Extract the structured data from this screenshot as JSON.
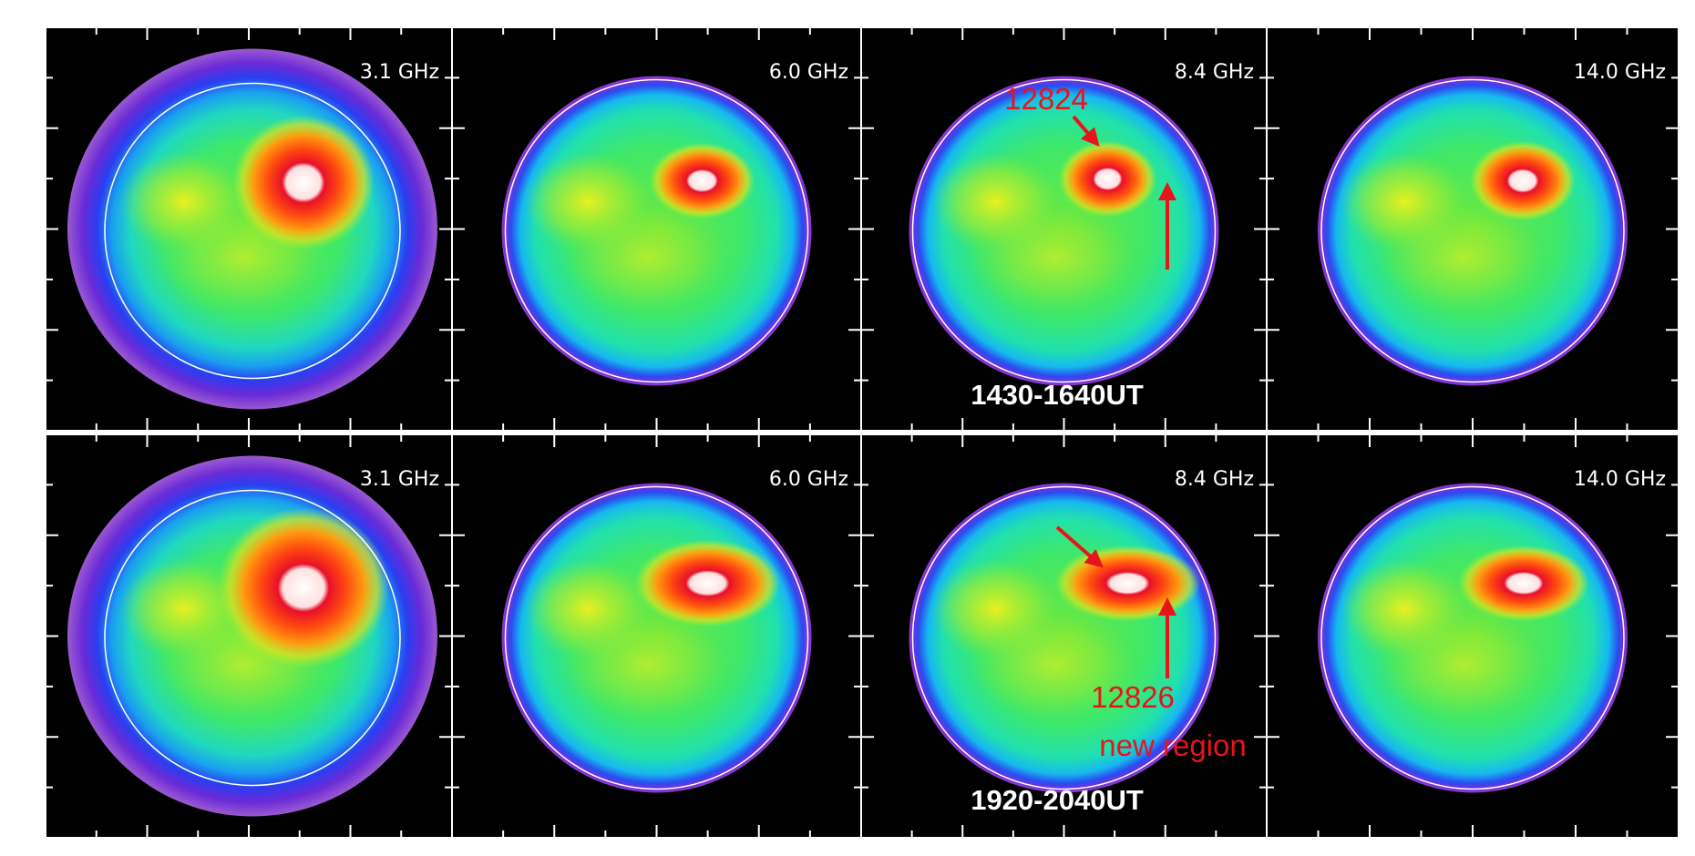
{
  "rows": [
    {
      "time": "1430-1640UT",
      "panels": [
        {
          "frequency": "3.1 GHz"
        },
        {
          "frequency": "6.0 GHz"
        },
        {
          "frequency": "8.4 GHz"
        },
        {
          "frequency": "14.0 GHz"
        }
      ],
      "annotations": [
        "12824"
      ]
    },
    {
      "time": "1920-2040UT",
      "panels": [
        {
          "frequency": "3.1 GHz"
        },
        {
          "frequency": "6.0 GHz"
        },
        {
          "frequency": "8.4 GHz"
        },
        {
          "frequency": "14.0 GHz"
        }
      ],
      "annotations": [
        "12826",
        "new region"
      ]
    }
  ]
}
